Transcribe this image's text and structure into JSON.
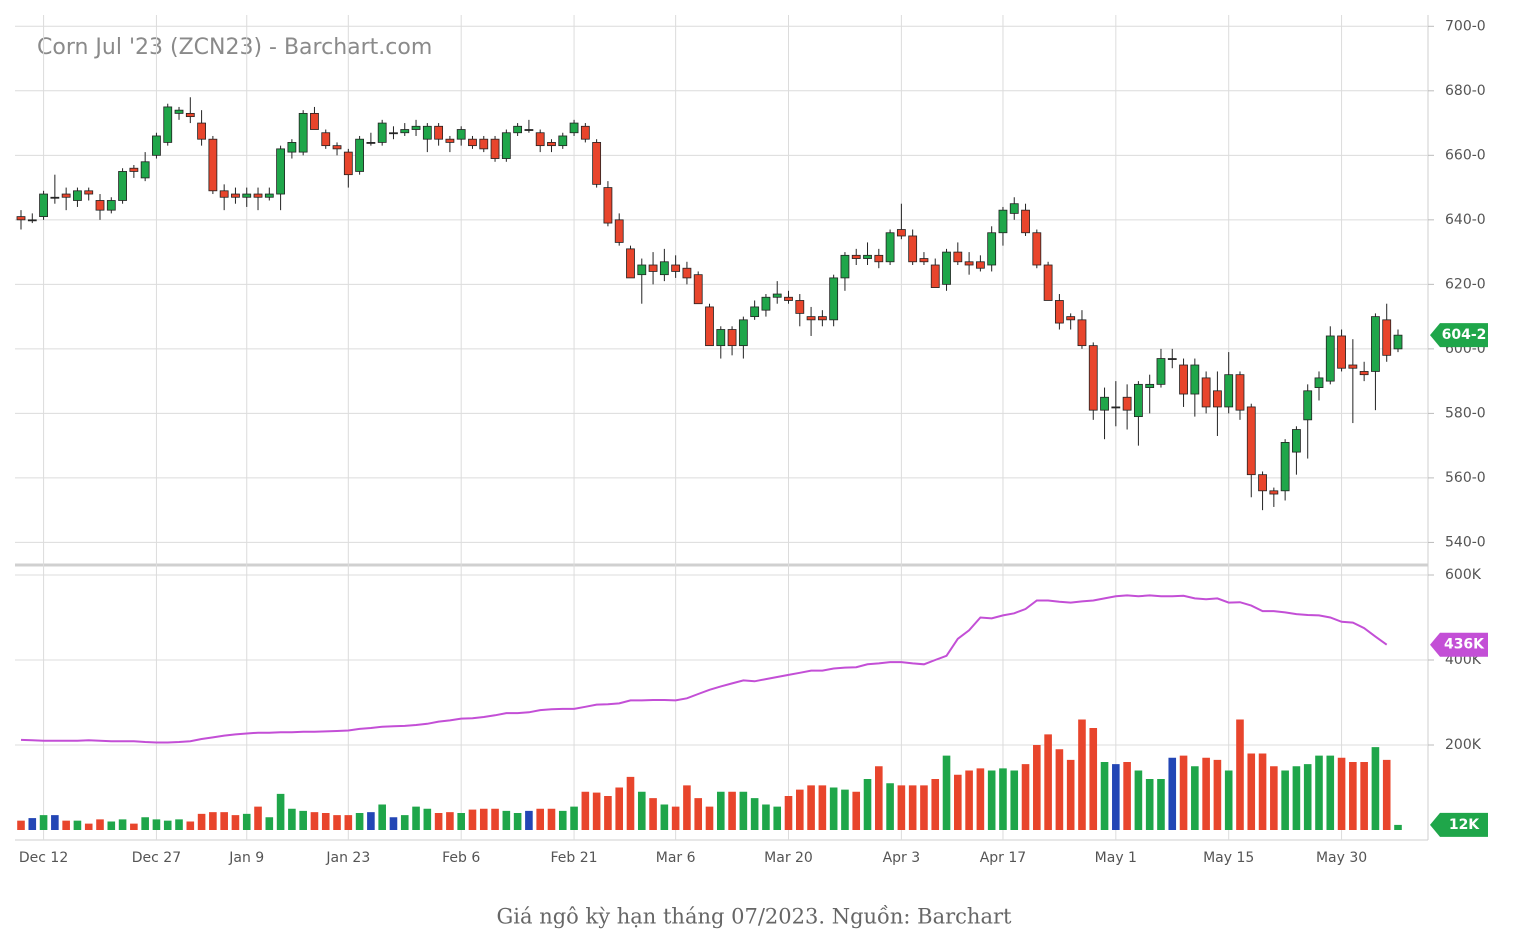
{
  "chart_data": {
    "type": "candlestick",
    "title": "Corn Jul '23 (ZCN23) - Barchart.com",
    "categories": [
      null,
      null,
      "Dec 12",
      null,
      null,
      null,
      null,
      null,
      null,
      null,
      null,
      null,
      "Dec 27",
      null,
      null,
      null,
      null,
      null,
      null,
      null,
      "Jan 9",
      null,
      null,
      null,
      null,
      null,
      null,
      null,
      null,
      "Jan 23",
      null,
      null,
      null,
      null,
      null,
      null,
      null,
      null,
      null,
      "Feb 6",
      null,
      null,
      null,
      null,
      null,
      null,
      null,
      null,
      null,
      "Feb 21",
      null,
      null,
      null,
      null,
      null,
      null,
      null,
      null,
      "Mar 6",
      null,
      null,
      null,
      null,
      null,
      null,
      null,
      null,
      null,
      "Mar 20",
      null,
      null,
      null,
      null,
      null,
      null,
      null,
      null,
      null,
      "Apr 3",
      null,
      null,
      null,
      null,
      null,
      null,
      null,
      null,
      "Apr 17",
      null,
      null,
      null,
      null,
      null,
      null,
      null,
      null,
      null,
      "May 1",
      null,
      null,
      null,
      null,
      null,
      null,
      null,
      null,
      null,
      "May 15",
      null,
      null,
      null,
      null,
      null,
      null,
      null,
      null,
      null,
      "May 30",
      null,
      null,
      null,
      null,
      null
    ],
    "ohlc": [
      [
        641,
        643,
        637,
        640
      ],
      [
        640,
        642,
        639,
        640
      ],
      [
        641,
        649,
        640,
        648
      ],
      [
        647,
        654,
        645,
        647
      ],
      [
        648,
        650,
        643,
        647
      ],
      [
        646,
        650,
        644,
        649
      ],
      [
        649,
        650,
        646,
        648
      ],
      [
        646,
        648,
        640,
        643
      ],
      [
        643,
        647,
        642,
        646
      ],
      [
        646,
        656,
        645,
        655
      ],
      [
        656,
        657,
        653,
        655
      ],
      [
        653,
        661,
        652,
        658
      ],
      [
        660,
        667,
        659,
        666
      ],
      [
        664,
        676,
        663,
        675
      ],
      [
        673,
        675,
        671,
        674
      ],
      [
        673,
        678,
        670,
        672
      ],
      [
        670,
        674,
        663,
        665
      ],
      [
        665,
        666,
        648,
        649
      ],
      [
        649,
        651,
        643,
        647
      ],
      [
        648,
        650,
        645,
        647
      ],
      [
        647,
        650,
        644,
        648
      ],
      [
        648,
        650,
        643,
        647
      ],
      [
        647,
        650,
        646,
        648
      ],
      [
        648,
        663,
        643,
        662
      ],
      [
        661,
        665,
        659,
        664
      ],
      [
        661,
        674,
        660,
        673
      ],
      [
        673,
        675,
        668,
        668
      ],
      [
        667,
        668,
        662,
        663
      ],
      [
        663,
        664,
        660,
        662
      ],
      [
        661,
        662,
        650,
        654
      ],
      [
        655,
        666,
        654,
        665
      ],
      [
        664,
        667,
        663,
        664
      ],
      [
        664,
        671,
        663,
        670
      ],
      [
        667,
        669,
        665,
        667
      ],
      [
        667,
        670,
        666,
        668
      ],
      [
        668,
        671,
        666,
        669
      ],
      [
        665,
        670,
        661,
        669
      ],
      [
        669,
        670,
        663,
        665
      ],
      [
        665,
        666,
        661,
        664
      ],
      [
        665,
        669,
        663,
        668
      ],
      [
        665,
        666,
        662,
        663
      ],
      [
        665,
        666,
        661,
        662
      ],
      [
        665,
        666,
        658,
        659
      ],
      [
        659,
        668,
        658,
        667
      ],
      [
        667,
        670,
        666,
        669
      ],
      [
        668,
        671,
        667,
        668
      ],
      [
        667,
        668,
        661,
        663
      ],
      [
        664,
        665,
        661,
        663
      ],
      [
        663,
        667,
        662,
        666
      ],
      [
        667,
        671,
        666,
        670
      ],
      [
        669,
        670,
        664,
        665
      ],
      [
        664,
        665,
        650,
        651
      ],
      [
        650,
        652,
        638,
        639
      ],
      [
        640,
        642,
        632,
        633
      ],
      [
        631,
        632,
        622,
        622
      ],
      [
        623,
        628,
        614,
        626
      ],
      [
        626,
        630,
        620,
        624
      ],
      [
        623,
        631,
        621,
        627
      ],
      [
        626,
        629,
        622,
        624
      ],
      [
        625,
        627,
        620,
        622
      ],
      [
        623,
        624,
        614,
        614
      ],
      [
        613,
        614,
        601,
        601
      ],
      [
        601,
        607,
        597,
        606
      ],
      [
        606,
        607,
        598,
        601
      ],
      [
        601,
        610,
        597,
        609
      ],
      [
        610,
        615,
        609,
        613
      ],
      [
        612,
        617,
        610,
        616
      ],
      [
        616,
        621,
        614,
        617
      ],
      [
        616,
        618,
        614,
        615
      ],
      [
        615,
        617,
        607,
        611
      ],
      [
        610,
        613,
        604,
        609
      ],
      [
        610,
        612,
        607,
        609
      ],
      [
        609,
        623,
        607,
        622
      ],
      [
        622,
        630,
        618,
        629
      ],
      [
        629,
        631,
        626,
        628
      ],
      [
        628,
        633,
        626,
        629
      ],
      [
        629,
        631,
        625,
        627
      ],
      [
        627,
        637,
        626,
        636
      ],
      [
        637,
        645,
        634,
        635
      ],
      [
        635,
        637,
        626,
        627
      ],
      [
        628,
        630,
        626,
        627
      ],
      [
        626,
        628,
        619,
        619
      ],
      [
        620,
        631,
        618,
        630
      ],
      [
        630,
        633,
        626,
        627
      ],
      [
        627,
        630,
        623,
        626
      ],
      [
        627,
        629,
        624,
        625
      ],
      [
        626,
        638,
        624,
        636
      ],
      [
        636,
        644,
        632,
        643
      ],
      [
        642,
        647,
        640,
        645
      ],
      [
        643,
        645,
        635,
        636
      ],
      [
        636,
        637,
        625,
        626
      ],
      [
        626,
        627,
        615,
        615
      ],
      [
        615,
        617,
        606,
        608
      ],
      [
        610,
        611,
        606,
        609
      ],
      [
        609,
        612,
        600,
        601
      ],
      [
        601,
        602,
        578,
        581
      ],
      [
        581,
        588,
        572,
        585
      ],
      [
        582,
        590,
        576,
        582
      ],
      [
        585,
        589,
        575,
        581
      ],
      [
        579,
        590,
        570,
        589
      ],
      [
        588,
        592,
        580,
        589
      ],
      [
        589,
        600,
        588,
        597
      ],
      [
        597,
        600,
        594,
        597
      ],
      [
        595,
        597,
        582,
        586
      ],
      [
        586,
        597,
        579,
        595
      ],
      [
        591,
        593,
        580,
        582
      ],
      [
        587,
        593,
        573,
        582
      ],
      [
        582,
        599,
        580,
        592
      ],
      [
        592,
        593,
        578,
        581
      ],
      [
        582,
        583,
        554,
        561
      ],
      [
        561,
        562,
        550,
        556
      ],
      [
        556,
        557,
        551,
        555
      ],
      [
        556,
        572,
        553,
        571
      ],
      [
        568,
        576,
        561,
        575
      ],
      [
        578,
        589,
        566,
        587
      ],
      [
        588,
        593,
        584,
        591
      ],
      [
        590,
        607,
        589,
        604
      ],
      [
        604,
        606,
        593,
        594
      ],
      [
        595,
        603,
        577,
        594
      ],
      [
        593,
        596,
        590,
        592
      ],
      [
        593,
        611,
        581,
        610
      ],
      [
        609,
        614,
        596,
        598
      ],
      [
        600,
        606,
        599,
        604.25
      ]
    ],
    "volume": [
      22,
      28,
      35,
      35,
      22,
      22,
      15,
      25,
      20,
      25,
      15,
      30,
      25,
      22,
      25,
      20,
      38,
      42,
      42,
      35,
      38,
      55,
      30,
      85,
      50,
      45,
      42,
      40,
      35,
      35,
      40,
      42,
      60,
      30,
      35,
      55,
      50,
      40,
      42,
      40,
      48,
      50,
      50,
      45,
      40,
      45,
      50,
      50,
      45,
      55,
      90,
      88,
      80,
      100,
      125,
      90,
      75,
      60,
      55,
      105,
      75,
      55,
      90,
      90,
      90,
      75,
      60,
      55,
      80,
      95,
      105,
      105,
      100,
      95,
      90,
      120,
      150,
      110,
      105,
      105,
      105,
      120,
      175,
      130,
      140,
      145,
      140,
      145,
      140,
      155,
      200,
      225,
      190,
      165,
      260,
      240,
      160,
      155,
      160,
      140,
      120,
      120,
      170,
      175,
      150,
      170,
      165,
      140,
      260,
      180,
      180,
      150,
      140,
      150,
      155,
      175,
      175,
      170,
      160,
      160,
      195,
      165,
      12
    ],
    "open_interest": [
      212,
      211,
      210,
      210,
      210,
      210,
      211,
      210,
      209,
      209,
      209,
      207,
      206,
      206,
      207,
      209,
      214,
      218,
      222,
      225,
      227,
      229,
      229,
      230,
      230,
      231,
      231,
      232,
      233,
      234,
      238,
      240,
      243,
      244,
      245,
      247,
      250,
      255,
      258,
      262,
      263,
      266,
      270,
      275,
      275,
      277,
      282,
      284,
      285,
      285,
      290,
      295,
      296,
      298,
      305,
      305,
      306,
      306,
      305,
      310,
      320,
      330,
      338,
      345,
      352,
      350,
      355,
      360,
      365,
      370,
      375,
      375,
      380,
      382,
      383,
      390,
      392,
      395,
      395,
      392,
      390,
      400,
      410,
      450,
      470,
      500,
      498,
      505,
      510,
      520,
      540,
      540,
      537,
      535,
      538,
      540,
      545,
      550,
      552,
      550,
      552,
      550,
      550,
      551,
      545,
      543,
      545,
      535,
      536,
      528,
      515,
      515,
      512,
      508,
      506,
      505,
      500,
      490,
      488,
      475,
      455,
      436,
      null
    ],
    "up_color": "#1fa64a",
    "down_color": "#e8452c",
    "flat_color": "#2346b5",
    "oi_color": "#c34fd6",
    "ylim": [
      533,
      703.5
    ],
    "yticks": [
      {
        "value": 700,
        "label": "700-0"
      },
      {
        "value": 680,
        "label": "680-0"
      },
      {
        "value": 660,
        "label": "660-0"
      },
      {
        "value": 640,
        "label": "640-0"
      },
      {
        "value": 620,
        "label": "620-0"
      },
      {
        "value": 600,
        "label": "600-0"
      },
      {
        "value": 580,
        "label": "580-0"
      },
      {
        "value": 560,
        "label": "560-0"
      },
      {
        "value": 540,
        "label": "540-0"
      }
    ],
    "y2lim": [
      0,
      600
    ],
    "y2ticks": [
      {
        "value": 600,
        "label": "600K"
      },
      {
        "value": 400,
        "label": "400K"
      },
      {
        "value": 200,
        "label": "200K"
      }
    ],
    "last_price": {
      "value": 604.25,
      "label": "604-2"
    },
    "last_open_interest": {
      "value": 436,
      "label": "436K"
    },
    "last_volume": {
      "value": 12,
      "label": "12K"
    }
  },
  "caption": "Giá ngô kỳ hạn tháng 07/2023. Nguồn: Barchart"
}
